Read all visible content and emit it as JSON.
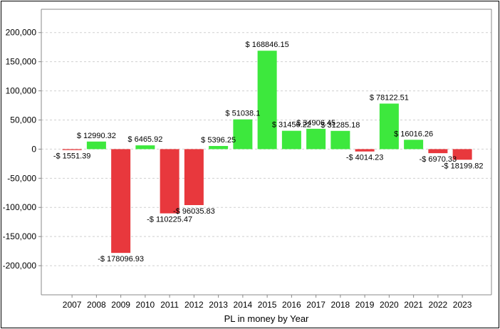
{
  "chart_data": {
    "type": "bar",
    "title": "",
    "xlabel": "PL in money by Year",
    "ylabel": "",
    "categories": [
      "2007",
      "2008",
      "2009",
      "2010",
      "2011",
      "2012",
      "2013",
      "2014",
      "2015",
      "2016",
      "2017",
      "2018",
      "2019",
      "2020",
      "2021",
      "2022",
      "2023"
    ],
    "values": [
      -1551.39,
      12990.32,
      -178096.93,
      6465.92,
      -110225.47,
      -96035.83,
      5396.25,
      51038.1,
      168846.15,
      31456.22,
      34906.45,
      31285.18,
      -4014.23,
      78122.51,
      16016.26,
      -6970.33,
      -18199.82
    ],
    "data_labels": [
      "-$ 1551.39",
      "$ 12990.32",
      "-$ 178096.93",
      "$ 6465.92",
      "-$ 110225.47",
      "-$ 96035.83",
      "$ 5396.25",
      "$ 51038.1",
      "$ 168846.15",
      "$ 31456.22",
      "$ 34906.45",
      "$ 31285.18",
      "-$ 4014.23",
      "$ 78122.51",
      "$ 16016.26",
      "-$ 6970.33",
      "-$ 18199.82"
    ],
    "ylim": [
      -250000,
      240000
    ],
    "yticks": [
      200000,
      150000,
      100000,
      50000,
      0,
      -50000,
      -100000,
      -150000,
      -200000
    ],
    "ytick_labels": [
      "200,000",
      "150,000",
      "100,000",
      "50,000",
      "0",
      "-50,000",
      "-100,000",
      "-150,000",
      "-200,000"
    ],
    "grid": true,
    "legend": "none",
    "colors": {
      "positive": "#3de83d",
      "negative": "#e8383d",
      "grid": "#d0d0d0",
      "axis": "#888888"
    }
  }
}
